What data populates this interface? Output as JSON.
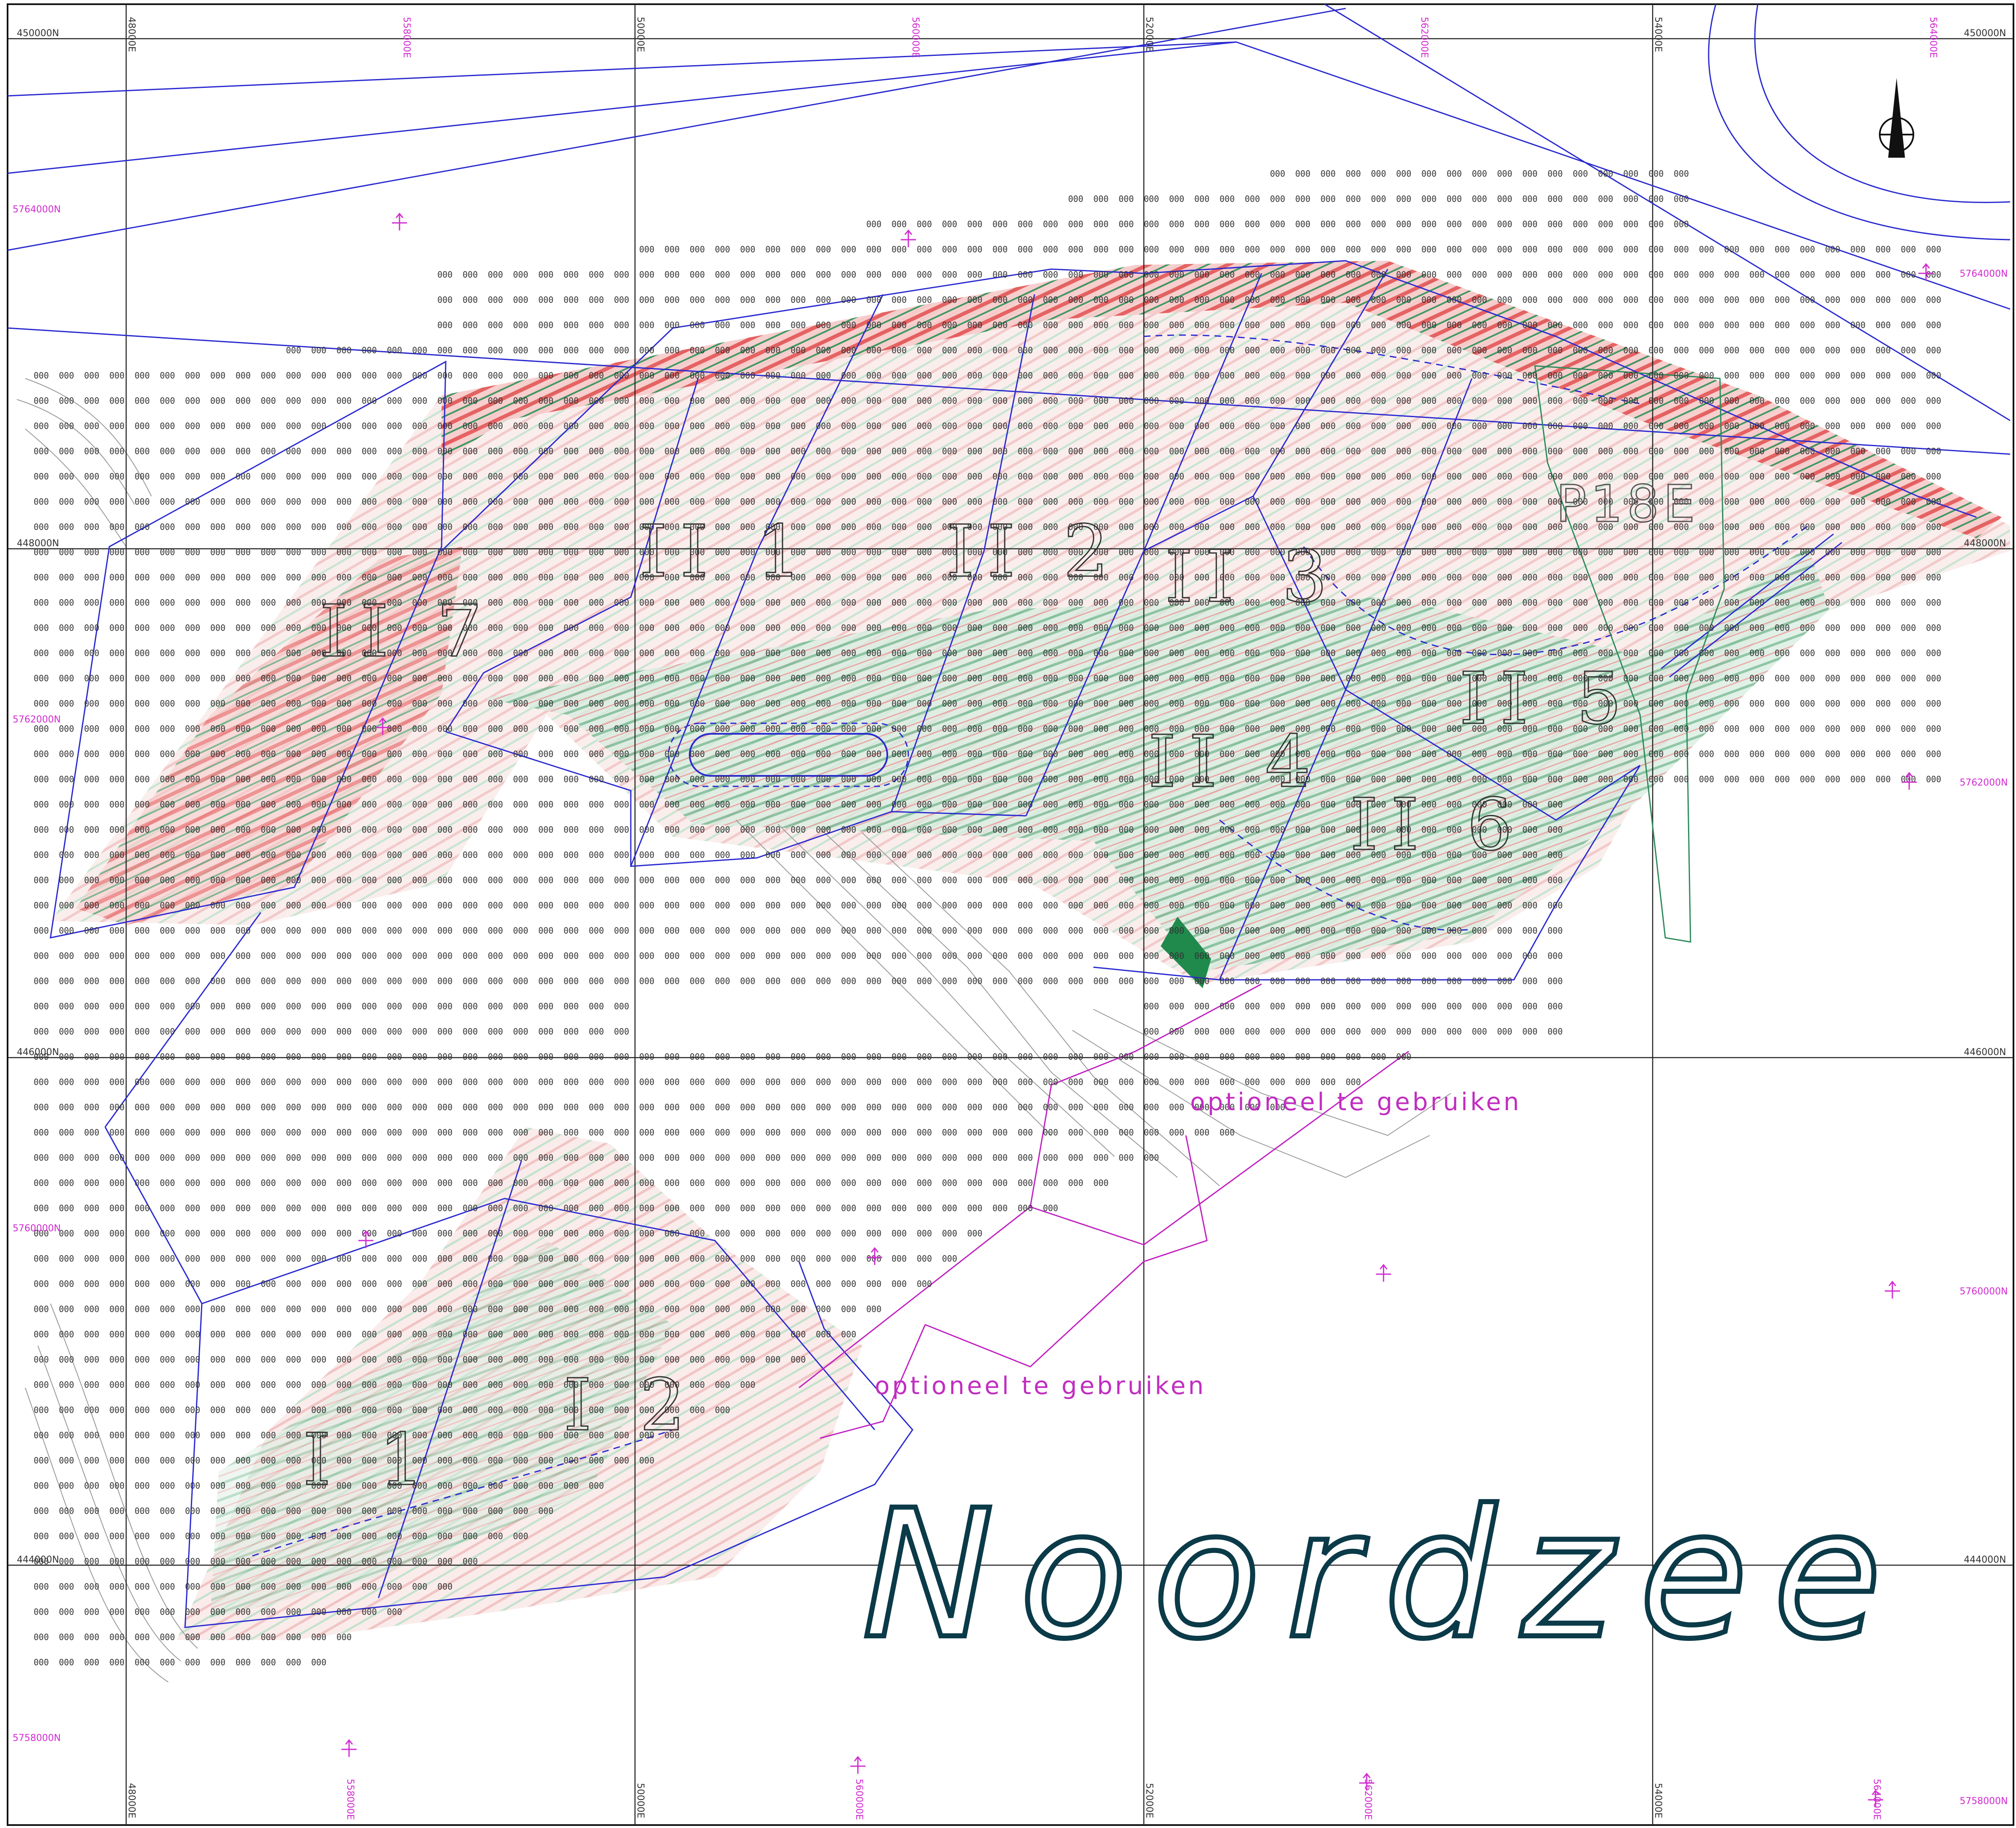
{
  "map": {
    "sea_label": "Noordzee",
    "optional_labels": [
      "optioneel te gebruiken",
      "optioneel te gebruiken"
    ],
    "platform_label": "P18E",
    "north_arrow_label": "N",
    "sections": [
      "II 1",
      "II 2",
      "II 3",
      "II 4",
      "II 5",
      "II 6",
      "II 7",
      "I 1",
      "I 2"
    ],
    "grid_left_labels": [
      "450000N",
      "448000N",
      "446000N",
      "444000N"
    ],
    "grid_right_labels": [
      "450000N",
      "448000N",
      "446000N",
      "444000N"
    ],
    "grid_top_labels": [
      "48000E",
      "50000E",
      "52000E",
      "54000E"
    ],
    "grid_bottom_labels": [
      "48000E",
      "50000E",
      "52000E",
      "54000E"
    ],
    "alt_left_labels": [
      "5764000N",
      "5762000N",
      "5760000N",
      "5758000N"
    ],
    "alt_right_labels": [
      "5764000N",
      "5762000N",
      "5760000N",
      "5758000N"
    ],
    "alt_top_labels": [
      "558000E",
      "560000E",
      "562000E",
      "564000E"
    ],
    "alt_bottom_labels": [
      "558000E",
      "560000E",
      "562000E",
      "564000E"
    ],
    "sounding_value": "000",
    "colors": {
      "grid": "#222222",
      "boundary": "#2a2ad0",
      "magenta": "#cc22cc",
      "deep": "#d8232a",
      "shallow": "#1e8c4e",
      "sea_text": "#0b3a48"
    }
  }
}
